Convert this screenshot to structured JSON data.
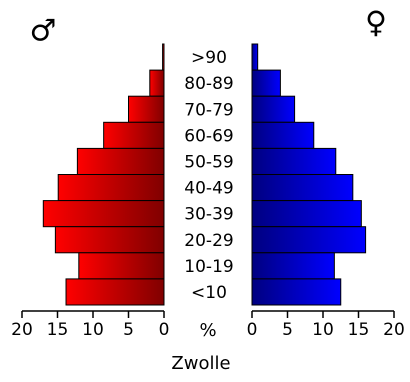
{
  "chart_data": {
    "type": "bar",
    "title": "Zwolle",
    "unit_label": "%",
    "male_symbol": "♂",
    "female_symbol": "♀",
    "categories": [
      ">90",
      "80-89",
      "70-79",
      "60-69",
      "50-59",
      "40-49",
      "30-39",
      "20-29",
      "10-19",
      "<10"
    ],
    "x_ticks_left": [
      "20",
      "15",
      "10",
      "5",
      "0"
    ],
    "x_ticks_right": [
      "0",
      "5",
      "10",
      "15",
      "20"
    ],
    "xlim": [
      0,
      20
    ],
    "series": [
      {
        "values": [
          0.2,
          2.0,
          5.0,
          8.5,
          12.2,
          14.9,
          17.0,
          15.3,
          12.0,
          13.8
        ]
      },
      {
        "values": [
          0.8,
          4.0,
          6.0,
          8.7,
          11.8,
          14.2,
          15.4,
          16.0,
          11.6,
          12.5
        ]
      }
    ],
    "grid": false,
    "legend": "none",
    "colors": {
      "male_light": "#ff0000",
      "male_dark": "#800000",
      "female_light": "#0000ff",
      "female_dark": "#000080",
      "axis": "#000000"
    }
  }
}
